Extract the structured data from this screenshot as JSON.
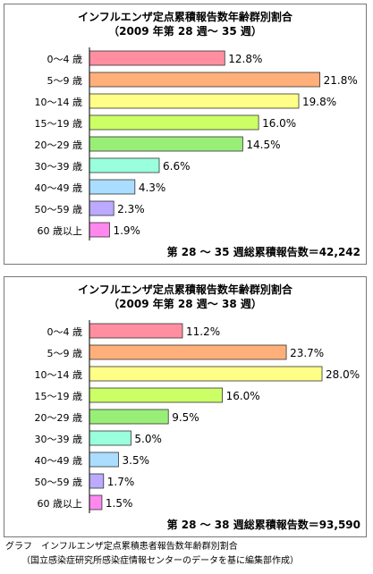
{
  "chart_data": [
    {
      "type": "bar",
      "orientation": "horizontal",
      "title": "インフルエンザ定点累積報告数年齢群別割合",
      "subtitle": "（2009 年第 28 週～ 35 週）",
      "categories": [
        "0～4 歳",
        "5～9 歳",
        "10～14 歳",
        "15～19 歳",
        "20～29 歳",
        "30～39 歳",
        "40～49 歳",
        "50～59 歳",
        "60 歳以上"
      ],
      "values": [
        12.8,
        21.8,
        19.8,
        16.0,
        14.5,
        6.6,
        4.3,
        2.3,
        1.9
      ],
      "value_labels": [
        "12.8%",
        "21.8%",
        "19.8%",
        "16.0%",
        "14.5%",
        "6.6%",
        "4.3%",
        "2.3%",
        "1.9%"
      ],
      "bar_colors": [
        "#ff8fa0",
        "#ffb07a",
        "#ffff88",
        "#ccff66",
        "#99ee77",
        "#99ffdd",
        "#aaddff",
        "#bbaaff",
        "#ff88ee"
      ],
      "xlim": [
        0,
        22
      ],
      "grid": false,
      "footer": "第 28 ～ 35 週総累積報告数＝42,242"
    },
    {
      "type": "bar",
      "orientation": "horizontal",
      "title": "インフルエンザ定点累積報告数年齢群別割合",
      "subtitle": "（2009 年第 28 週～ 38 週）",
      "categories": [
        "0～4 歳",
        "5～9 歳",
        "10～14 歳",
        "15～19 歳",
        "20～29 歳",
        "30～39 歳",
        "40～49 歳",
        "50～59 歳",
        "60 歳以上"
      ],
      "values": [
        11.2,
        23.7,
        28.0,
        16.0,
        9.5,
        5.0,
        3.5,
        1.7,
        1.5
      ],
      "value_labels": [
        "11.2%",
        "23.7%",
        "28.0%",
        "16.0%",
        "9.5%",
        "5.0%",
        "3.5%",
        "1.7%",
        "1.5%"
      ],
      "bar_colors": [
        "#ff8fa0",
        "#ffb07a",
        "#ffff88",
        "#ccff66",
        "#99ee77",
        "#99ffdd",
        "#aaddff",
        "#bbaaff",
        "#ff88ee"
      ],
      "xlim": [
        0,
        28
      ],
      "grid": false,
      "footer": "第 28 ～ 38 週総累積報告数＝93,590"
    }
  ],
  "caption": {
    "line1": "グラフ　インフルエンザ定点累積患者報告数年齢群別割合",
    "line2": "（国立感染症研究所感染症情報センターのデータを基に編集部作成）"
  }
}
